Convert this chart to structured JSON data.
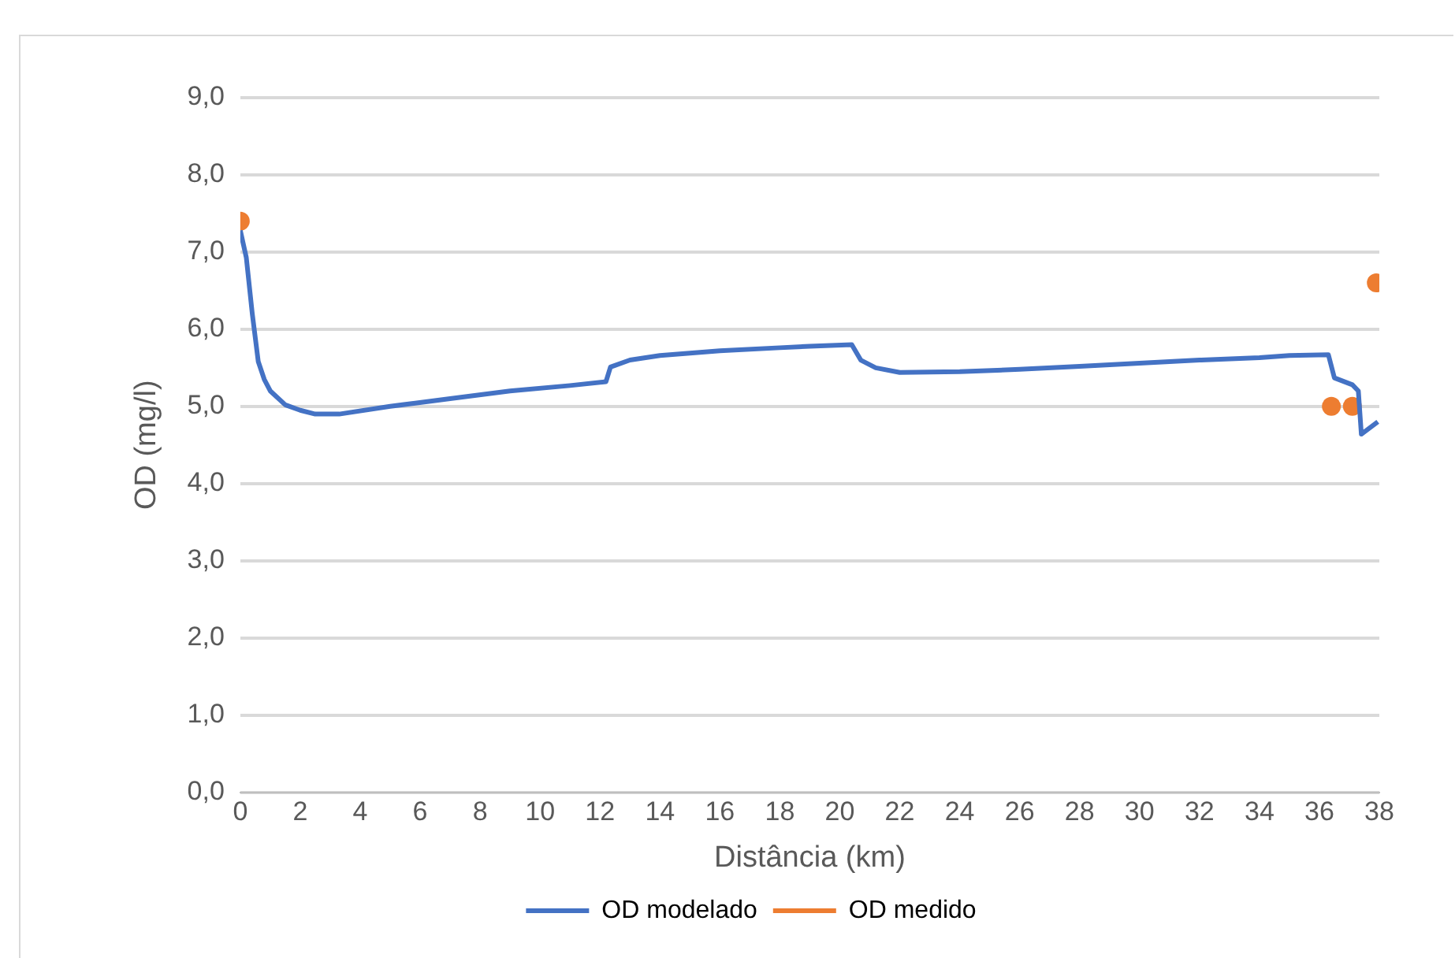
{
  "chart_data": {
    "type": "line",
    "xlabel": "Distância (km)",
    "ylabel": "OD (mg/l)",
    "xlim": [
      0,
      38
    ],
    "xticks": [
      0,
      2,
      4,
      6,
      8,
      10,
      12,
      14,
      16,
      18,
      20,
      22,
      24,
      26,
      28,
      30,
      32,
      34,
      36,
      38
    ],
    "ylim": [
      0,
      9
    ],
    "yticks": [
      {
        "value": 0,
        "label": "0,0"
      },
      {
        "value": 1,
        "label": "1,0"
      },
      {
        "value": 2,
        "label": "2,0"
      },
      {
        "value": 3,
        "label": "3,0"
      },
      {
        "value": 4,
        "label": "4,0"
      },
      {
        "value": 5,
        "label": "5,0"
      },
      {
        "value": 6,
        "label": "6,0"
      },
      {
        "value": 7,
        "label": "7,0"
      },
      {
        "value": 8,
        "label": "8,0"
      },
      {
        "value": 9,
        "label": "9,0"
      }
    ],
    "grid": "y",
    "legend": "bottom",
    "series": [
      {
        "name": "OD modelado",
        "color": "#4472c4",
        "marker": "none",
        "x": [
          0,
          0.2,
          0.4,
          0.6,
          0.8,
          1.0,
          1.5,
          2.0,
          2.5,
          3.3,
          5,
          7,
          9,
          11,
          12.2,
          12.35,
          13,
          14,
          16,
          18,
          19,
          20.4,
          20.7,
          21.2,
          22,
          24,
          26,
          28,
          30,
          32,
          34,
          35,
          36.3,
          36.5,
          37.1,
          37.3,
          37.4,
          37.95
        ],
        "values": [
          7.28,
          6.93,
          6.2,
          5.58,
          5.35,
          5.2,
          5.02,
          4.95,
          4.9,
          4.9,
          5.0,
          5.1,
          5.2,
          5.27,
          5.32,
          5.51,
          5.6,
          5.66,
          5.72,
          5.76,
          5.78,
          5.8,
          5.6,
          5.5,
          5.44,
          5.45,
          5.48,
          5.52,
          5.56,
          5.6,
          5.63,
          5.66,
          5.67,
          5.37,
          5.28,
          5.2,
          4.64,
          4.8
        ]
      },
      {
        "name": "OD medido",
        "color": "#ed7d31",
        "type": "scatter",
        "marker": "circle",
        "x": [
          0,
          36.4,
          37.1,
          37.9
        ],
        "values": [
          7.4,
          5.0,
          5.0,
          6.6
        ]
      }
    ]
  }
}
